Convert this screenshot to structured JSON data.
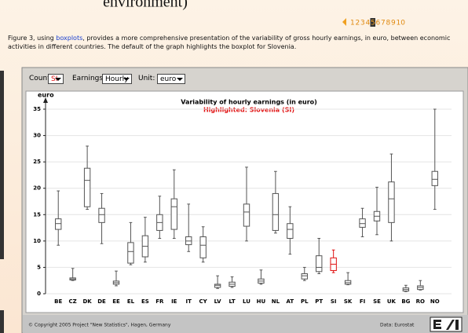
{
  "header": {
    "partial_heading": "environment)"
  },
  "pagination": {
    "pages": [
      1,
      2,
      3,
      4,
      5,
      6,
      7,
      8,
      9,
      10
    ],
    "current": 5
  },
  "caption": {
    "before": "Figure 3, using ",
    "link": "boxplots",
    "after": ", provides a more comprehensive presentation of the variability of gross hourly earnings, in euro, between economic activities in different countries. The default of the graph highlights the boxplot for Slovenia."
  },
  "controls": [
    {
      "label": "Country:",
      "value": "SI"
    },
    {
      "label": "Earnings:",
      "value": "Hourly"
    },
    {
      "label": "Unit:",
      "value": "euro"
    }
  ],
  "chart_data": {
    "type": "boxplot",
    "title": "Variability of hourly earnings (in euro)",
    "subtitle": "Highlighted: Slovenia (SI)",
    "y_label": "euro",
    "categories": [
      "BE",
      "CZ",
      "DK",
      "DE",
      "EE",
      "EL",
      "ES",
      "FR",
      "IE",
      "IT",
      "CY",
      "LV",
      "LT",
      "LU",
      "HU",
      "NL",
      "AT",
      "PL",
      "PT",
      "SI",
      "SK",
      "FI",
      "SE",
      "UK",
      "BG",
      "RO",
      "NO"
    ],
    "min": [
      9.2,
      2.5,
      16,
      9.5,
      1.5,
      5.5,
      6,
      10.5,
      10.5,
      8,
      6,
      1,
      1.2,
      10,
      1.8,
      11.5,
      7.5,
      2.5,
      3.8,
      4,
      1.7,
      10.8,
      11.2,
      10,
      0.4,
      0.7,
      16
    ],
    "q1": [
      12.2,
      2.6,
      16.5,
      13.5,
      1.8,
      5.8,
      7,
      12,
      12.2,
      9.3,
      6.8,
      1.2,
      1.4,
      12.8,
      2,
      12,
      10.5,
      2.8,
      4.2,
      4.4,
      1.8,
      12.6,
      13.8,
      13.5,
      0.5,
      0.8,
      20.5
    ],
    "median": [
      13.3,
      2.8,
      21.5,
      15,
      2.1,
      8,
      9,
      13.5,
      16.5,
      10,
      9.2,
      1.6,
      1.8,
      15.5,
      2.4,
      15,
      12.2,
      3.4,
      5,
      5.6,
      2.1,
      13.3,
      14.7,
      18,
      0.8,
      1.2,
      21.7
    ],
    "q3": [
      14.2,
      3,
      23.8,
      16.2,
      2.4,
      9.7,
      11,
      15,
      18,
      10.8,
      10.8,
      1.8,
      2.2,
      17,
      2.8,
      19,
      13.3,
      3.8,
      7.2,
      6.8,
      2.5,
      14.2,
      15.6,
      21.2,
      1.1,
      1.5,
      23.2
    ],
    "max": [
      19.5,
      4.8,
      28,
      19,
      4.3,
      13.5,
      14.5,
      18.5,
      23.5,
      17,
      12.7,
      3.4,
      3.2,
      24,
      4.5,
      23.2,
      16.5,
      5,
      10.5,
      8.3,
      4,
      16.2,
      20.2,
      26.5,
      1.6,
      2.5,
      35
    ],
    "color": "#555555",
    "highlight": "SI",
    "highlight_color": "#e01010",
    "ylim": [
      0,
      35
    ],
    "yticks": [
      0,
      5,
      10,
      15,
      20,
      25,
      30,
      35
    ],
    "grid": true
  },
  "footer": {
    "copyright": "© Copyright 2005 Project \"New Statistics\", Hagen, Germany",
    "source": "Data: Eurostat"
  }
}
